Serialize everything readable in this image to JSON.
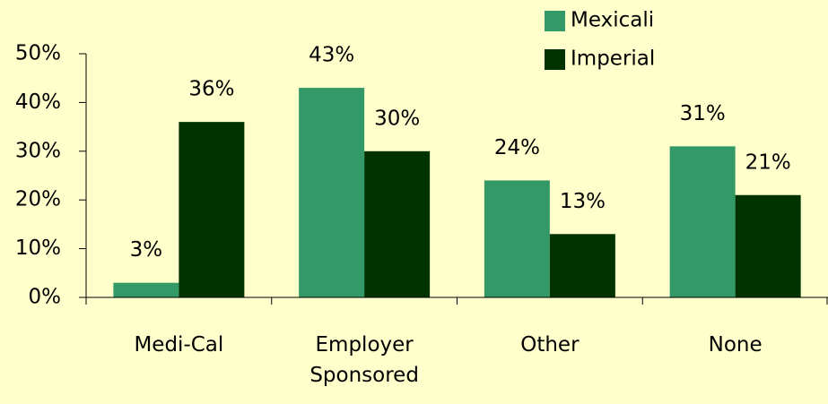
{
  "chart_data": {
    "type": "bar",
    "categories": [
      "Medi-Cal",
      "Employer Sponsored",
      "Other",
      "None"
    ],
    "series": [
      {
        "name": "Mexicali",
        "color": "#339966",
        "values": [
          3,
          43,
          24,
          31
        ],
        "value_labels": [
          "3%",
          "43%",
          "24%",
          "31%"
        ]
      },
      {
        "name": "Imperial",
        "color": "#003300",
        "values": [
          36,
          30,
          13,
          21
        ],
        "value_labels": [
          "36%",
          "30%",
          "13%",
          "21%"
        ]
      }
    ],
    "ylim": [
      0,
      50
    ],
    "yticks": [
      {
        "value": 0,
        "label": "0%"
      },
      {
        "value": 10,
        "label": "10%"
      },
      {
        "value": 20,
        "label": "20%"
      },
      {
        "value": 30,
        "label": "30%"
      },
      {
        "value": 40,
        "label": "40%"
      },
      {
        "value": 50,
        "label": "50%"
      }
    ],
    "grid": false,
    "legend": "top-right"
  }
}
